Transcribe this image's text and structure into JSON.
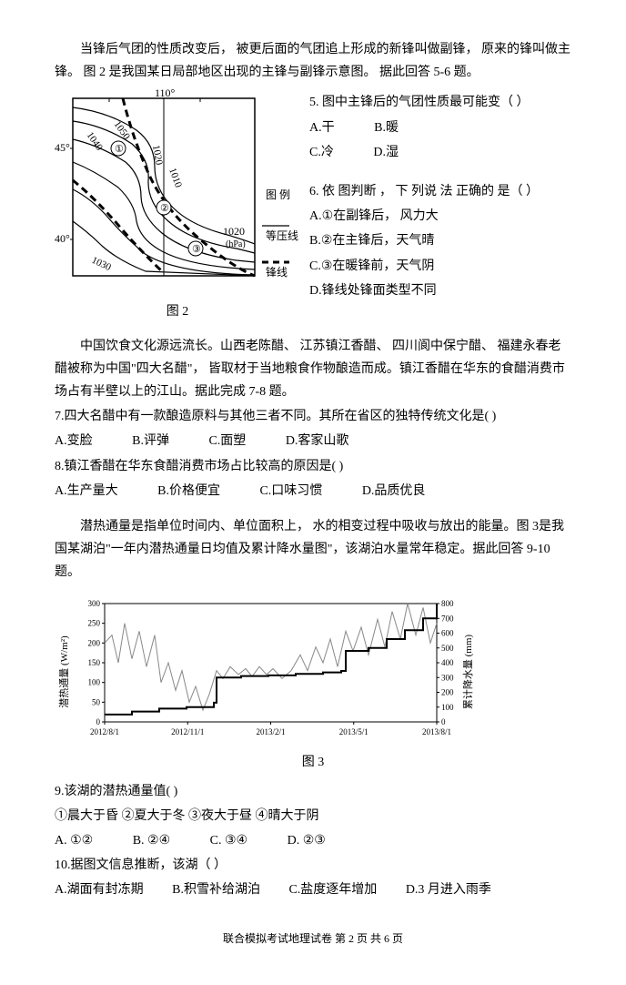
{
  "intro1": "当锋后气团的性质改变后， 被更后面的气团追上形成的新锋叫做副锋， 原来的锋叫做主锋。 图 2 是我国某日局部地区出现的主锋与副锋示意图。 据此回答 5-6 题。",
  "fig2": {
    "caption": "图 2",
    "longitude_label": "110°",
    "lat_45": "45°",
    "lat_40": "40°",
    "isobars": [
      "1040",
      "1050",
      "1020",
      "1010",
      "1030",
      "1020"
    ],
    "unit": "(hPa)",
    "markers": [
      "①",
      "②",
      "③"
    ],
    "legend_title": "图 例",
    "legend_isobar": "等压线",
    "legend_front": "锋线",
    "isobar_color": "#000000",
    "front_color": "#000000",
    "background_color": "#ffffff"
  },
  "q5": {
    "stem": "5. 图中主锋后的气团性质最可能变（    ）",
    "opts": {
      "A": "A.干",
      "B": "B.暖",
      "C": "C.冷",
      "D": "D.湿"
    }
  },
  "q6": {
    "stem": "6. 依 图判断 ， 下 列说 法 正确的 是（    ）",
    "opts": {
      "A": "A.①在副锋后， 风力大",
      "B": "B.②在主锋后，天气晴",
      "C": "C.③在暖锋前，天气阴",
      "D": "D.锋线处锋面类型不同"
    }
  },
  "intro2": "中国饮食文化源远流长。山西老陈醋、 江苏镇江香醋、 四川阆中保宁醋、 福建永春老醋被称为中国\"四大名醋\"， 皆取材于当地粮食作物酿造而成。镇江香醋在华东的食醋消费市场占有半壁以上的江山。据此完成 7-8 题。",
  "q7": {
    "stem": "7.四大名醋中有一款酿造原料与其他三者不同。其所在省区的独特传统文化是(    )",
    "opts": {
      "A": "A.变脸",
      "B": "B.评弹",
      "C": "C.面塑",
      "D": "D.客家山歌"
    }
  },
  "q8": {
    "stem": "8.镇江香醋在华东食醋消费市场占比较高的原因是(    )",
    "opts": {
      "A": "A.生产量大",
      "B": "B.价格便宜",
      "C": "C.口味习惯",
      "D": "D.品质优良"
    }
  },
  "intro3": "潜热通量是指单位时间内、单位面积上， 水的相变过程中吸收与放出的能量。图 3是我国某湖泊\"一年内潜热通量日均值及累计降水量图\"，该湖泊水量常年稳定。据此回答 9-10 题。",
  "fig3": {
    "caption": "图 3",
    "x_ticks": [
      "2012/8/1",
      "2012/11/1",
      "2013/2/1",
      "2013/5/1",
      "2013/8/1"
    ],
    "y_left_label": "潜热通量 (W/m²)",
    "y_left_ticks": [
      0,
      50,
      100,
      150,
      200,
      250,
      300
    ],
    "y_right_label": "累计降水量 (mm)",
    "y_right_ticks": [
      0,
      100,
      200,
      300,
      400,
      500,
      600,
      700,
      800
    ],
    "line_flux_color": "#888888",
    "line_precip_color": "#000000",
    "background_color": "#ffffff",
    "grid_color": "#000000",
    "flux_data": [
      [
        0,
        200
      ],
      [
        8,
        220
      ],
      [
        15,
        150
      ],
      [
        22,
        250
      ],
      [
        30,
        160
      ],
      [
        38,
        230
      ],
      [
        46,
        140
      ],
      [
        55,
        220
      ],
      [
        62,
        100
      ],
      [
        70,
        150
      ],
      [
        78,
        80
      ],
      [
        85,
        130
      ],
      [
        93,
        50
      ],
      [
        100,
        90
      ],
      [
        108,
        30
      ],
      [
        115,
        70
      ],
      [
        123,
        130
      ],
      [
        130,
        110
      ],
      [
        138,
        140
      ],
      [
        147,
        120
      ],
      [
        155,
        135
      ],
      [
        162,
        115
      ],
      [
        170,
        140
      ],
      [
        178,
        120
      ],
      [
        185,
        135
      ],
      [
        195,
        110
      ],
      [
        205,
        130
      ],
      [
        215,
        170
      ],
      [
        223,
        130
      ],
      [
        232,
        190
      ],
      [
        240,
        150
      ],
      [
        248,
        210
      ],
      [
        256,
        140
      ],
      [
        265,
        230
      ],
      [
        273,
        180
      ],
      [
        282,
        240
      ],
      [
        290,
        170
      ],
      [
        300,
        260
      ],
      [
        308,
        190
      ],
      [
        316,
        280
      ],
      [
        325,
        210
      ],
      [
        333,
        300
      ],
      [
        342,
        220
      ],
      [
        350,
        290
      ],
      [
        358,
        200
      ],
      [
        365,
        250
      ]
    ],
    "precip_data": [
      [
        0,
        50
      ],
      [
        30,
        70
      ],
      [
        60,
        90
      ],
      [
        90,
        100
      ],
      [
        120,
        130
      ],
      [
        123,
        300
      ],
      [
        150,
        310
      ],
      [
        180,
        315
      ],
      [
        210,
        325
      ],
      [
        240,
        335
      ],
      [
        260,
        345
      ],
      [
        265,
        480
      ],
      [
        290,
        500
      ],
      [
        310,
        560
      ],
      [
        330,
        620
      ],
      [
        350,
        700
      ],
      [
        365,
        800
      ]
    ]
  },
  "q9": {
    "stem": "9.该湖的潜热通量值(    )",
    "sub": "①晨大于昏    ②夏大于冬    ③夜大于昼    ④晴大于阴",
    "opts": {
      "A": "A. ①②",
      "B": "B. ②④",
      "C": "C. ③④",
      "D": "D. ②③"
    }
  },
  "q10": {
    "stem": "10.据图文信息推断，该湖（  ）",
    "opts": {
      "A": "A.湖面有封冻期",
      "B": "B.积雪补给湖泊",
      "C": "C.盐度逐年增加",
      "D": "D.3 月进入雨季"
    }
  },
  "footer": "联合模拟考试地理试卷   第 2 页 共 6 页"
}
